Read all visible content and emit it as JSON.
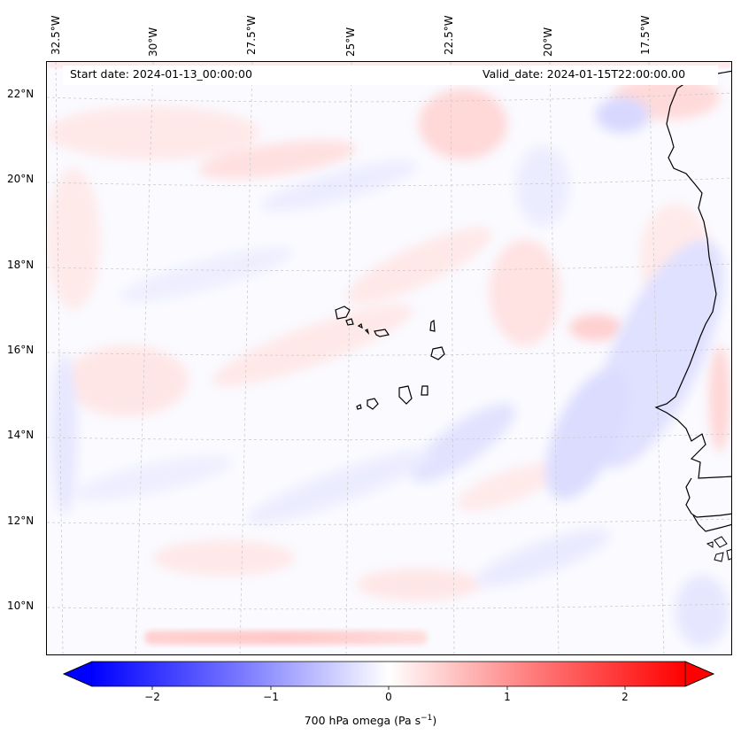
{
  "header": {
    "start_date": "Start date: 2024-01-13_00:00:00",
    "valid_date": "Valid_date: 2024-01-15T22:00:00.00"
  },
  "longitude_labels": [
    "32.5°W",
    "30°W",
    "27.5°W",
    "25°W",
    "22.5°W",
    "20°W",
    "17.5°W"
  ],
  "latitude_labels": [
    "22°N",
    "20°N",
    "18°N",
    "16°N",
    "14°N",
    "12°N",
    "10°N"
  ],
  "colorbar": {
    "ticks": [
      "−2",
      "−1",
      "0",
      "1",
      "2"
    ],
    "label_main": "700 hPa omega (Pa s",
    "label_exp": "−1",
    "label_close": ")",
    "min_color": "#0000ff",
    "mid_color": "#ffffff",
    "max_color": "#ff0000",
    "range": [
      -2.5,
      2.5
    ]
  },
  "map": {
    "variable": "700 hPa omega",
    "colormap": "bwr",
    "coastline_color": "#000000",
    "gridlines": "dashed"
  }
}
